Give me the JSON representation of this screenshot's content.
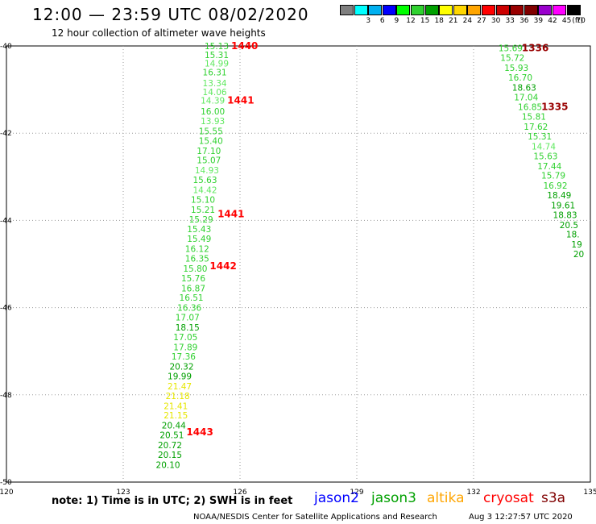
{
  "header": {
    "title": "12:00 — 23:59 UTC 08/02/2020",
    "subtitle": "12 hour collection of altimeter wave heights"
  },
  "legend": {
    "unit": "(ft)",
    "bins": [
      {
        "label": "",
        "color": "#7f7f7f"
      },
      {
        "label": "3",
        "color": "#00ffff"
      },
      {
        "label": "6",
        "color": "#00b0f0"
      },
      {
        "label": "9",
        "color": "#0000ff"
      },
      {
        "label": "12",
        "color": "#00ff00"
      },
      {
        "label": "15",
        "color": "#2fd12f"
      },
      {
        "label": "18",
        "color": "#00a000"
      },
      {
        "label": "21",
        "color": "#ffff00"
      },
      {
        "label": "24",
        "color": "#ffd700"
      },
      {
        "label": "27",
        "color": "#ffa500"
      },
      {
        "label": "30",
        "color": "#ff0000"
      },
      {
        "label": "33",
        "color": "#cc0000"
      },
      {
        "label": "36",
        "color": "#990000"
      },
      {
        "label": "39",
        "color": "#800000"
      },
      {
        "label": "42",
        "color": "#9900cc"
      },
      {
        "label": "45",
        "color": "#ff00ff"
      },
      {
        "label": "70",
        "color": "#000000"
      }
    ]
  },
  "map": {
    "lon_ticks": [
      "120",
      "123",
      "126",
      "129",
      "132",
      "135"
    ],
    "lat_ticks": [
      "-40",
      "-42",
      "-44",
      "-46",
      "-48",
      "-50"
    ]
  },
  "track_a": {
    "times": [
      {
        "text": "1440",
        "lat": -40.0
      },
      {
        "text": "1441",
        "lat": -41.25
      },
      {
        "text": "1441",
        "lat": -43.85
      },
      {
        "text": "1442",
        "lat": -45.05
      },
      {
        "text": "1443",
        "lat": -48.85
      }
    ],
    "values": [
      {
        "v": "15.13",
        "lat": -40.0,
        "lon": 125.4,
        "c": "#2fd12f"
      },
      {
        "v": "15.31",
        "lat": -40.2,
        "lon": 125.4,
        "c": "#2fd12f"
      },
      {
        "v": "14.99",
        "lat": -40.4,
        "lon": 125.4,
        "c": "#5fe85f"
      },
      {
        "v": "16.31",
        "lat": -40.6,
        "lon": 125.35,
        "c": "#2fd12f"
      },
      {
        "v": "13.34",
        "lat": -40.85,
        "lon": 125.35,
        "c": "#5fe85f"
      },
      {
        "v": "14.06",
        "lat": -41.05,
        "lon": 125.35,
        "c": "#5fe85f"
      },
      {
        "v": "14.39",
        "lat": -41.25,
        "lon": 125.3,
        "c": "#5fe85f"
      },
      {
        "v": "16.00",
        "lat": -41.5,
        "lon": 125.3,
        "c": "#2fd12f"
      },
      {
        "v": "13.93",
        "lat": -41.72,
        "lon": 125.3,
        "c": "#5fe85f"
      },
      {
        "v": "15.55",
        "lat": -41.95,
        "lon": 125.25,
        "c": "#2fd12f"
      },
      {
        "v": "15.40",
        "lat": -42.17,
        "lon": 125.25,
        "c": "#2fd12f"
      },
      {
        "v": "17.10",
        "lat": -42.4,
        "lon": 125.2,
        "c": "#2fd12f"
      },
      {
        "v": "15.07",
        "lat": -42.62,
        "lon": 125.2,
        "c": "#2fd12f"
      },
      {
        "v": "14.93",
        "lat": -42.85,
        "lon": 125.15,
        "c": "#5fe85f"
      },
      {
        "v": "15.63",
        "lat": -43.07,
        "lon": 125.1,
        "c": "#2fd12f"
      },
      {
        "v": "14.42",
        "lat": -43.3,
        "lon": 125.1,
        "c": "#5fe85f"
      },
      {
        "v": "15.10",
        "lat": -43.52,
        "lon": 125.05,
        "c": "#2fd12f"
      },
      {
        "v": "15.21",
        "lat": -43.75,
        "lon": 125.05,
        "c": "#2fd12f"
      },
      {
        "v": "15.29",
        "lat": -43.97,
        "lon": 125.0,
        "c": "#2fd12f"
      },
      {
        "v": "15.43",
        "lat": -44.2,
        "lon": 124.95,
        "c": "#2fd12f"
      },
      {
        "v": "15.49",
        "lat": -44.42,
        "lon": 124.95,
        "c": "#2fd12f"
      },
      {
        "v": "16.12",
        "lat": -44.65,
        "lon": 124.9,
        "c": "#2fd12f"
      },
      {
        "v": "16.35",
        "lat": -44.87,
        "lon": 124.9,
        "c": "#2fd12f"
      },
      {
        "v": "15.80",
        "lat": -45.1,
        "lon": 124.85,
        "c": "#2fd12f"
      },
      {
        "v": "15.76",
        "lat": -45.32,
        "lon": 124.8,
        "c": "#2fd12f"
      },
      {
        "v": "16.87",
        "lat": -45.55,
        "lon": 124.8,
        "c": "#2fd12f"
      },
      {
        "v": "16.51",
        "lat": -45.77,
        "lon": 124.75,
        "c": "#2fd12f"
      },
      {
        "v": "16.36",
        "lat": -46.0,
        "lon": 124.7,
        "c": "#2fd12f"
      },
      {
        "v": "17.07",
        "lat": -46.22,
        "lon": 124.65,
        "c": "#2fd12f"
      },
      {
        "v": "18.15",
        "lat": -46.45,
        "lon": 124.65,
        "c": "#00a000"
      },
      {
        "v": "17.05",
        "lat": -46.67,
        "lon": 124.6,
        "c": "#2fd12f"
      },
      {
        "v": "17.89",
        "lat": -46.9,
        "lon": 124.6,
        "c": "#2fd12f"
      },
      {
        "v": "17.36",
        "lat": -47.12,
        "lon": 124.55,
        "c": "#2fd12f"
      },
      {
        "v": "20.32",
        "lat": -47.35,
        "lon": 124.5,
        "c": "#00a000"
      },
      {
        "v": "19.99",
        "lat": -47.57,
        "lon": 124.45,
        "c": "#00a000"
      },
      {
        "v": "21.47",
        "lat": -47.8,
        "lon": 124.45,
        "c": "#e6e600"
      },
      {
        "v": "21.18",
        "lat": -48.02,
        "lon": 124.4,
        "c": "#e6e600"
      },
      {
        "v": "21.41",
        "lat": -48.25,
        "lon": 124.35,
        "c": "#e6e600"
      },
      {
        "v": "21.15",
        "lat": -48.47,
        "lon": 124.35,
        "c": "#e6e600"
      },
      {
        "v": "20.44",
        "lat": -48.7,
        "lon": 124.3,
        "c": "#00a000"
      },
      {
        "v": "20.51",
        "lat": -48.92,
        "lon": 124.25,
        "c": "#00a000"
      },
      {
        "v": "20.72",
        "lat": -49.15,
        "lon": 124.2,
        "c": "#00a000"
      },
      {
        "v": "20.15",
        "lat": -49.37,
        "lon": 124.2,
        "c": "#00a000"
      },
      {
        "v": "20.10",
        "lat": -49.6,
        "lon": 124.15,
        "c": "#00a000"
      }
    ]
  },
  "track_b": {
    "times": [
      {
        "text": "1336",
        "lat": -40.05
      },
      {
        "text": "1335",
        "lat": -41.4
      }
    ],
    "values": [
      {
        "v": "15.69",
        "lat": -40.05,
        "lon": 132.95,
        "c": "#2fd12f"
      },
      {
        "v": "15.72",
        "lat": -40.27,
        "lon": 133.0,
        "c": "#2fd12f"
      },
      {
        "v": "15.93",
        "lat": -40.5,
        "lon": 133.1,
        "c": "#2fd12f"
      },
      {
        "v": "16.70",
        "lat": -40.72,
        "lon": 133.2,
        "c": "#2fd12f"
      },
      {
        "v": "18.63",
        "lat": -40.95,
        "lon": 133.3,
        "c": "#00a000"
      },
      {
        "v": "17.04",
        "lat": -41.17,
        "lon": 133.35,
        "c": "#2fd12f"
      },
      {
        "v": "16.85",
        "lat": -41.4,
        "lon": 133.45,
        "c": "#2fd12f"
      },
      {
        "v": "15.81",
        "lat": -41.62,
        "lon": 133.55,
        "c": "#2fd12f"
      },
      {
        "v": "17.62",
        "lat": -41.85,
        "lon": 133.6,
        "c": "#2fd12f"
      },
      {
        "v": "15.31",
        "lat": -42.07,
        "lon": 133.7,
        "c": "#2fd12f"
      },
      {
        "v": "14.74",
        "lat": -42.3,
        "lon": 133.8,
        "c": "#5fe85f"
      },
      {
        "v": "15.63",
        "lat": -42.52,
        "lon": 133.85,
        "c": "#2fd12f"
      },
      {
        "v": "17.44",
        "lat": -42.75,
        "lon": 133.95,
        "c": "#2fd12f"
      },
      {
        "v": "15.79",
        "lat": -42.97,
        "lon": 134.05,
        "c": "#2fd12f"
      },
      {
        "v": "16.92",
        "lat": -43.2,
        "lon": 134.1,
        "c": "#2fd12f"
      },
      {
        "v": "18.49",
        "lat": -43.42,
        "lon": 134.2,
        "c": "#00a000"
      },
      {
        "v": "19.61",
        "lat": -43.65,
        "lon": 134.3,
        "c": "#00a000"
      },
      {
        "v": "18.83",
        "lat": -43.87,
        "lon": 134.35,
        "c": "#00a000"
      },
      {
        "v": "20.5",
        "lat": -44.1,
        "lon": 134.45,
        "c": "#00a000"
      },
      {
        "v": "18.",
        "lat": -44.32,
        "lon": 134.55,
        "c": "#00a000"
      },
      {
        "v": "19",
        "lat": -44.55,
        "lon": 134.65,
        "c": "#00a000"
      },
      {
        "v": "20",
        "lat": -44.77,
        "lon": 134.7,
        "c": "#00a000"
      }
    ]
  },
  "footer": {
    "note": "note:  1) Time is in UTC; 2) SWH is in feet",
    "satellites": [
      {
        "name": "jason2",
        "color": "#0000ff"
      },
      {
        "name": "jason3",
        "color": "#00a000"
      },
      {
        "name": "altika",
        "color": "#ffa500"
      },
      {
        "name": "cryosat",
        "color": "#ff0000"
      },
      {
        "name": "s3a",
        "color": "#800000"
      }
    ],
    "credit": "NOAA/NESDIS Center for Satellite Applications and Research",
    "timestamp": "Aug  3 12:27:57 UTC 2020"
  }
}
